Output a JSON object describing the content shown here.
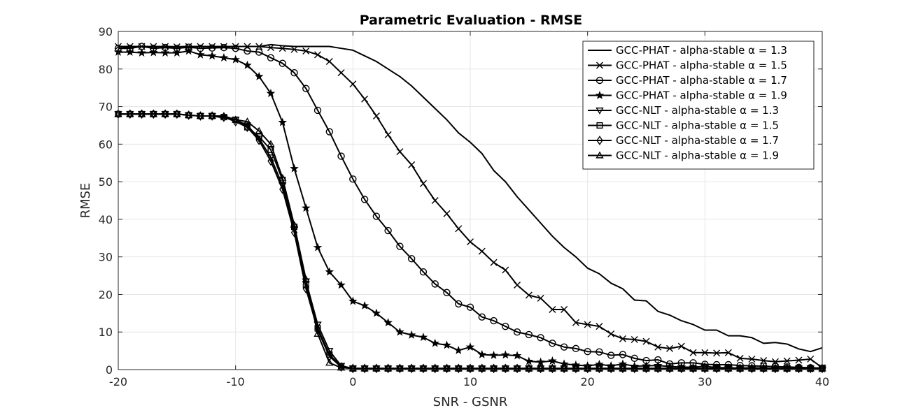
{
  "chart_data": {
    "type": "line",
    "title": "Parametric Evaluation - RMSE",
    "xlabel": "SNR - GSNR",
    "ylabel": "RMSE",
    "xlim": [
      -20,
      40
    ],
    "ylim": [
      0,
      90
    ],
    "xticks": [
      "-20",
      "-10",
      "0",
      "10",
      "20",
      "30",
      "40"
    ],
    "yticks": [
      "0",
      "10",
      "20",
      "30",
      "40",
      "50",
      "60",
      "70",
      "80",
      "90"
    ],
    "grid": true,
    "legend_position": "top-right",
    "color": "#000000",
    "x": [
      -20,
      -19,
      -18,
      -17,
      -16,
      -15,
      -14,
      -13,
      -12,
      -11,
      -10,
      -9,
      -8,
      -7,
      -6,
      -5,
      -4,
      -3,
      -2,
      -1,
      0,
      1,
      2,
      3,
      4,
      5,
      6,
      7,
      8,
      9,
      10,
      11,
      12,
      13,
      14,
      15,
      16,
      17,
      18,
      19,
      20,
      21,
      22,
      23,
      24,
      25,
      26,
      27,
      28,
      29,
      30,
      31,
      32,
      33,
      34,
      35,
      36,
      37,
      38,
      39,
      40
    ],
    "series": [
      {
        "name": "GCC-PHAT - alpha-stable α = 1.3",
        "marker": "none",
        "values": [
          85.5,
          85.8,
          86,
          85.9,
          86,
          85.9,
          86,
          86,
          85.9,
          86,
          86,
          86,
          86,
          86.5,
          86.2,
          86,
          86,
          86,
          86,
          85.5,
          85,
          83.5,
          82,
          80,
          78,
          75.5,
          72.5,
          69.5,
          66.5,
          63,
          60.5,
          57.5,
          53,
          50,
          46,
          42.5,
          39,
          35.5,
          32.5,
          30,
          27,
          25.5,
          23,
          21.5,
          18.5,
          18.3,
          15.5,
          14.5,
          13,
          12,
          10.5,
          10.5,
          9,
          9,
          8.5,
          7,
          7.2,
          6.8,
          5.5,
          4.8,
          5.8
        ]
      },
      {
        "name": "GCC-PHAT - alpha-stable α = 1.5",
        "marker": "x",
        "values": [
          86,
          86,
          86,
          86,
          86,
          85.9,
          86,
          86,
          86,
          86,
          86,
          86,
          86,
          85.7,
          85.5,
          85.2,
          84.8,
          83.8,
          82,
          79,
          76,
          72,
          67.5,
          62.5,
          58,
          54.5,
          49.5,
          45,
          41.5,
          37.5,
          34,
          31.5,
          28.5,
          26.5,
          22.5,
          19.8,
          19,
          16,
          16,
          12.5,
          12,
          11.5,
          9.5,
          8.2,
          8,
          7.5,
          6,
          5.6,
          6.2,
          4.5,
          4.5,
          4.4,
          4.5,
          3,
          2.8,
          2.4,
          2.1,
          2.3,
          2.5,
          2.8,
          0.5
        ]
      },
      {
        "name": "GCC-PHAT - alpha-stable α = 1.7",
        "marker": "o",
        "values": [
          85.5,
          85.5,
          86,
          85.5,
          85.7,
          85.5,
          85.8,
          85.5,
          85.6,
          85.7,
          85.5,
          84.8,
          84.5,
          83,
          81.5,
          79,
          74.8,
          69,
          63.3,
          56.8,
          50.7,
          45.3,
          40.8,
          37,
          32.8,
          29.5,
          26,
          22.8,
          20.5,
          17.5,
          16.6,
          14,
          13,
          11.5,
          10,
          9.3,
          8.5,
          7,
          6,
          5.6,
          4.8,
          4.7,
          3.8,
          4,
          3,
          2.4,
          2.6,
          1.5,
          1.8,
          1.8,
          1.4,
          1.3,
          1.3,
          1.1,
          1,
          0.9,
          0.8,
          0.7,
          0.6,
          0.5,
          0.4
        ]
      },
      {
        "name": "GCC-PHAT - alpha-stable α = 1.9",
        "marker": "star",
        "values": [
          84.5,
          84.5,
          84.3,
          84.4,
          84.3,
          84.3,
          84.8,
          83.8,
          83.5,
          83,
          82.5,
          81,
          78,
          73.5,
          65.8,
          53.5,
          43,
          32.5,
          26,
          22.5,
          18.2,
          17,
          15,
          12.5,
          10,
          9.2,
          8.6,
          7,
          6.5,
          5.1,
          6,
          4,
          3.8,
          3.9,
          3.7,
          2.2,
          2,
          2.3,
          1.5,
          1.2,
          1,
          1.4,
          1,
          1.5,
          0.9,
          1,
          1.1,
          0.8,
          0.7,
          0.6,
          0.9,
          0.5,
          0.5,
          0.4,
          0.5,
          0.4,
          0.3,
          0.3,
          0.3,
          0.2,
          0.2
        ]
      },
      {
        "name": "GCC-NLT - alpha-stable α = 1.3",
        "marker": "triangle-down",
        "values": [
          68,
          68,
          68,
          68,
          68,
          68,
          67.7,
          67.5,
          67.5,
          67,
          66.5,
          65,
          61.5,
          56.5,
          49,
          37.5,
          23.5,
          12,
          5,
          1,
          0.3,
          0.3,
          0.3,
          0.3,
          0.3,
          0.3,
          0.3,
          0.3,
          0.3,
          0.3,
          0.3,
          0.3,
          0.3,
          0.3,
          0.3,
          0.3,
          0.3,
          0.3,
          0.3,
          0.3,
          0.3,
          0.3,
          0.3,
          0.3,
          0.3,
          0.3,
          0.3,
          0.3,
          0.3,
          0.3,
          0.3,
          0.3,
          0.3,
          0.3,
          0.3,
          0.3,
          0.3,
          0.3,
          0.3,
          0.3,
          0.3
        ]
      },
      {
        "name": "GCC-NLT - alpha-stable α = 1.5",
        "marker": "square",
        "values": [
          68,
          68,
          68,
          68,
          68,
          68,
          67.7,
          67.5,
          67.5,
          67.2,
          66.5,
          64.5,
          62,
          58.5,
          50.5,
          38,
          22.5,
          11,
          4,
          0.8,
          0.3,
          0.3,
          0.3,
          0.3,
          0.3,
          0.3,
          0.3,
          0.3,
          0.3,
          0.3,
          0.3,
          0.3,
          0.3,
          0.3,
          0.3,
          0.3,
          0.3,
          0.3,
          0.3,
          0.3,
          0.3,
          0.3,
          0.3,
          0.3,
          0.3,
          0.3,
          0.3,
          0.3,
          0.3,
          0.3,
          0.3,
          0.3,
          0.3,
          0.3,
          0.3,
          0.3,
          0.3,
          0.3,
          0.3,
          0.3,
          0.3
        ]
      },
      {
        "name": "GCC-NLT - alpha-stable α = 1.7",
        "marker": "diamond",
        "values": [
          68,
          68,
          68,
          68,
          68,
          68,
          67.7,
          67.5,
          67.5,
          67.2,
          66,
          64.5,
          61,
          55.5,
          48,
          36.5,
          21.5,
          10.5,
          3.5,
          0.7,
          0.3,
          0.3,
          0.3,
          0.3,
          0.3,
          0.3,
          0.3,
          0.3,
          0.3,
          0.3,
          0.3,
          0.3,
          0.3,
          0.3,
          0.3,
          0.3,
          0.3,
          0.3,
          0.3,
          0.3,
          0.3,
          0.3,
          0.3,
          0.3,
          0.3,
          0.3,
          0.3,
          0.3,
          0.3,
          0.3,
          0.3,
          0.3,
          0.3,
          0.3,
          0.3,
          0.3,
          0.3,
          0.3,
          0.3,
          0.3,
          0.3
        ]
      },
      {
        "name": "GCC-NLT - alpha-stable α = 1.9",
        "marker": "triangle-up",
        "values": [
          68,
          68,
          68,
          68,
          68,
          68,
          67.7,
          67.5,
          67.5,
          67.5,
          66.5,
          66,
          63.5,
          60,
          51,
          38.5,
          24,
          9.5,
          1.8,
          0.5,
          0.3,
          0.3,
          0.3,
          0.3,
          0.3,
          0.3,
          0.3,
          0.3,
          0.3,
          0.3,
          0.3,
          0.3,
          0.3,
          0.3,
          0.3,
          0.3,
          0.3,
          0.3,
          0.3,
          0.3,
          0.3,
          0.3,
          0.3,
          0.3,
          0.3,
          0.3,
          0.3,
          0.3,
          0.3,
          0.3,
          0.3,
          0.3,
          0.3,
          0.3,
          0.3,
          0.3,
          0.3,
          0.3,
          0.3,
          0.3,
          0.3
        ]
      }
    ]
  }
}
